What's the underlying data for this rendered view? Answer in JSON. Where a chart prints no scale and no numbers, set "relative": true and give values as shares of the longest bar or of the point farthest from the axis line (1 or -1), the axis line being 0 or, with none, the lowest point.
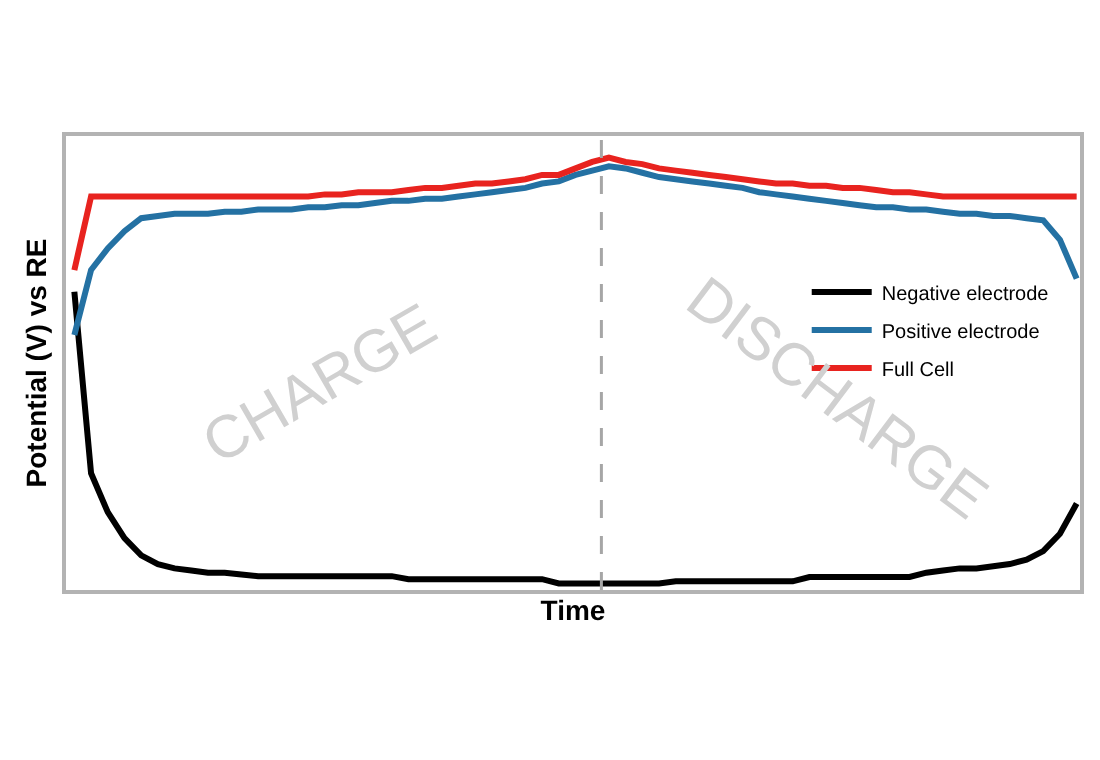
{
  "chart_data": {
    "type": "line",
    "xlabel": "Time",
    "ylabel": "Potential (V) vs RE",
    "relative": true,
    "legend": "right",
    "line_style": "solid",
    "marker": "none",
    "categories": [
      null,
      null,
      null,
      null,
      null,
      null,
      null,
      null,
      null,
      null,
      null,
      null,
      null,
      null,
      null,
      null,
      null,
      null,
      null,
      null,
      null,
      null,
      null,
      null,
      null,
      null,
      null,
      null,
      null,
      null,
      null,
      null,
      null,
      null,
      null,
      null,
      null,
      null,
      null,
      null,
      null,
      null,
      null,
      null,
      null,
      null,
      null,
      null,
      null,
      null,
      null,
      null,
      null,
      null,
      null,
      null,
      null,
      null,
      null,
      null,
      null
    ],
    "series": [
      {
        "name": "Negative electrode",
        "color": "#000000",
        "values": [
          0.69,
          0.27,
          0.18,
          0.12,
          0.08,
          0.06,
          0.05,
          0.045,
          0.04,
          0.04,
          0.036,
          0.032,
          0.032,
          0.032,
          0.032,
          0.032,
          0.032,
          0.032,
          0.032,
          0.032,
          0.025,
          0.025,
          0.025,
          0.025,
          0.025,
          0.025,
          0.025,
          0.025,
          0.025,
          0.015,
          0.015,
          0.015,
          0.015,
          0.015,
          0.015,
          0.015,
          0.02,
          0.02,
          0.02,
          0.02,
          0.02,
          0.02,
          0.02,
          0.02,
          0.03,
          0.03,
          0.03,
          0.03,
          0.03,
          0.03,
          0.03,
          0.04,
          0.045,
          0.05,
          0.05,
          0.055,
          0.06,
          0.07,
          0.09,
          0.13,
          0.2
        ]
      },
      {
        "name": "Positive electrode",
        "color": "#2471a3",
        "values": [
          0.59,
          0.74,
          0.79,
          0.83,
          0.86,
          0.865,
          0.87,
          0.87,
          0.87,
          0.875,
          0.875,
          0.88,
          0.88,
          0.88,
          0.885,
          0.885,
          0.89,
          0.89,
          0.895,
          0.9,
          0.9,
          0.905,
          0.905,
          0.91,
          0.915,
          0.92,
          0.925,
          0.93,
          0.94,
          0.945,
          0.96,
          0.97,
          0.98,
          0.975,
          0.965,
          0.955,
          0.95,
          0.945,
          0.94,
          0.935,
          0.93,
          0.92,
          0.915,
          0.91,
          0.905,
          0.9,
          0.895,
          0.89,
          0.885,
          0.885,
          0.88,
          0.88,
          0.875,
          0.87,
          0.87,
          0.865,
          0.865,
          0.86,
          0.855,
          0.81,
          0.72
        ]
      },
      {
        "name": "Full Cell",
        "color": "#e8231f",
        "values": [
          0.74,
          0.91,
          0.91,
          0.91,
          0.91,
          0.91,
          0.91,
          0.91,
          0.91,
          0.91,
          0.91,
          0.91,
          0.91,
          0.91,
          0.91,
          0.915,
          0.915,
          0.92,
          0.92,
          0.92,
          0.925,
          0.93,
          0.93,
          0.935,
          0.94,
          0.94,
          0.945,
          0.95,
          0.96,
          0.96,
          0.975,
          0.99,
          1.0,
          0.99,
          0.985,
          0.975,
          0.97,
          0.965,
          0.96,
          0.955,
          0.95,
          0.945,
          0.94,
          0.94,
          0.935,
          0.935,
          0.93,
          0.93,
          0.925,
          0.92,
          0.92,
          0.915,
          0.91,
          0.91,
          0.91,
          0.91,
          0.91,
          0.91,
          0.91,
          0.91,
          0.91
        ]
      }
    ],
    "annotations": [
      "CHARGE",
      "DISCHARGE"
    ]
  }
}
